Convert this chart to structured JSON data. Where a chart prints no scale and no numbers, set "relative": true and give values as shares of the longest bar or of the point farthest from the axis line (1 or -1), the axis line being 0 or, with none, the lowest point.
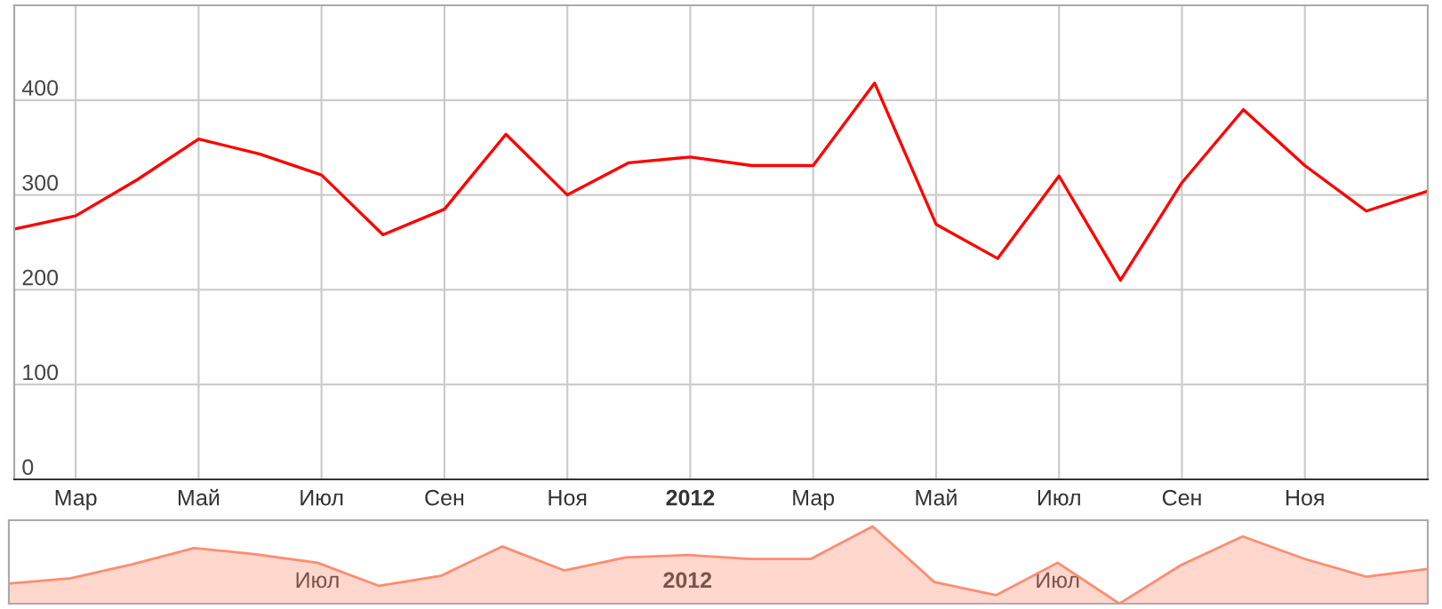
{
  "chart_data": [
    {
      "type": "line",
      "categories": [
        null,
        "Мар",
        null,
        "Май",
        null,
        "Июл",
        null,
        "Сен",
        null,
        "Ноя",
        null,
        "2012",
        null,
        "Мар",
        null,
        "Май",
        null,
        "Июл",
        null,
        "Сен",
        null,
        "Ноя",
        null,
        null
      ],
      "series": [
        {
          "color": "#ff0000",
          "values": [
            264,
            278,
            316,
            359,
            343,
            321,
            258,
            285,
            364,
            300,
            334,
            340,
            331,
            331,
            418,
            269,
            233,
            320,
            210,
            313,
            390,
            331,
            283,
            304
          ]
        }
      ],
      "ylim": [
        0,
        500
      ],
      "yticks": [
        0,
        100,
        200,
        300,
        400
      ],
      "grid": true
    },
    {
      "type": "area",
      "relative": true,
      "categories": [
        null,
        null,
        null,
        null,
        null,
        "Июл",
        null,
        null,
        null,
        null,
        null,
        "2012",
        null,
        null,
        null,
        null,
        null,
        "Июл",
        null,
        null,
        null,
        null,
        null,
        null
      ],
      "series": [
        {
          "color": "#ff8c70",
          "values": [
            0.26,
            0.33,
            0.51,
            0.72,
            0.64,
            0.53,
            0.23,
            0.36,
            0.74,
            0.43,
            0.6,
            0.63,
            0.58,
            0.58,
            1,
            0.28,
            0.11,
            0.53,
            0,
            0.5,
            0.87,
            0.58,
            0.35,
            0.45
          ]
        }
      ],
      "tick_labels": "x",
      "grid": false
    }
  ]
}
